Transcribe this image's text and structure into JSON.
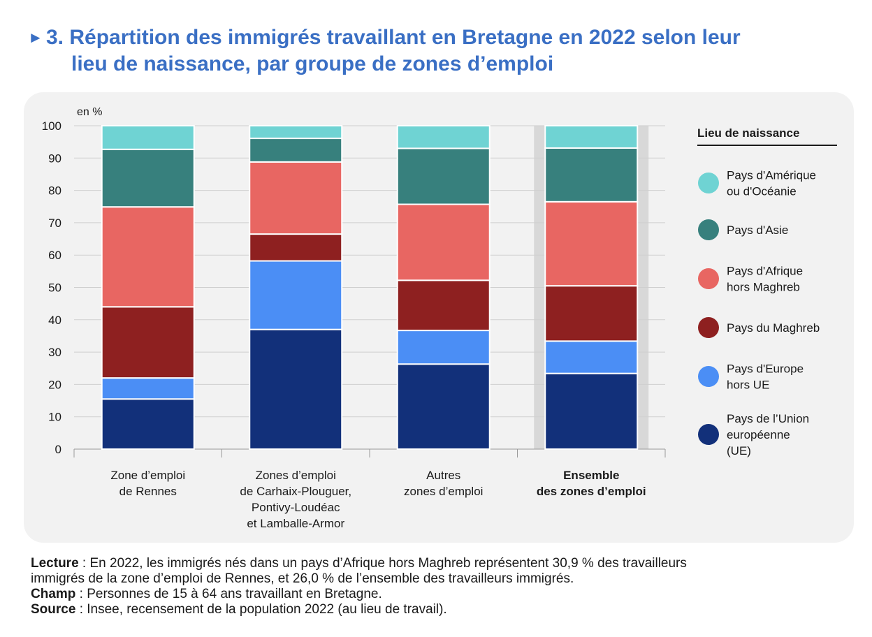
{
  "title": {
    "arrow": "►",
    "line1": "3. Répartition des immigrés travaillant en Bretagne en 2022 selon leur",
    "line2": "lieu de naissance, par groupe de zones d’emploi"
  },
  "chart_data": {
    "type": "bar",
    "stacked": true,
    "unit_label": "en %",
    "ylim": [
      0,
      100
    ],
    "yticks": [
      0,
      10,
      20,
      30,
      40,
      50,
      60,
      70,
      80,
      90,
      100
    ],
    "categories": [
      [
        "Zone d’emploi",
        "de Rennes"
      ],
      [
        "Zones d’emploi",
        "de Carhaix-Plouguer,",
        "Pontivy-Loudéac",
        "et Lamballe-Armor"
      ],
      [
        "Autres",
        "zones d’emploi"
      ],
      [
        "Ensemble",
        "des zones d’emploi"
      ]
    ],
    "highlight_category_index": 3,
    "series": [
      {
        "name": "Pays de l’Union européenne (UE)",
        "color": "#12307a",
        "values": [
          15.5,
          37.0,
          26.3,
          23.4
        ]
      },
      {
        "name": "Pays d'Europe hors UE",
        "color": "#4b8ef5",
        "values": [
          6.5,
          21.2,
          10.4,
          10.0
        ]
      },
      {
        "name": "Pays du Maghreb",
        "color": "#8e2020",
        "values": [
          22.0,
          8.3,
          15.5,
          17.1
        ]
      },
      {
        "name": "Pays d'Afrique hors Maghreb",
        "color": "#e86662",
        "values": [
          30.9,
          22.3,
          23.5,
          26.0
        ]
      },
      {
        "name": "Pays d'Asie",
        "color": "#37807d",
        "values": [
          17.8,
          7.3,
          17.3,
          16.6
        ]
      },
      {
        "name": "Pays d'Amérique ou d'Océanie",
        "color": "#6fd3d3",
        "values": [
          7.3,
          3.9,
          7.0,
          6.9
        ]
      }
    ],
    "legend": {
      "title": "Lieu de naissance",
      "position": "right",
      "entries": [
        {
          "lines": [
            "Pays d'Amérique",
            "ou d'Océanie"
          ],
          "color": "#6fd3d3"
        },
        {
          "lines": [
            "Pays d'Asie"
          ],
          "color": "#37807d"
        },
        {
          "lines": [
            "Pays d'Afrique",
            "hors Maghreb"
          ],
          "color": "#e86662"
        },
        {
          "lines": [
            "Pays du Maghreb"
          ],
          "color": "#8e2020"
        },
        {
          "lines": [
            "Pays d'Europe",
            "hors UE"
          ],
          "color": "#4b8ef5"
        },
        {
          "lines": [
            "Pays de l’Union",
            "européenne",
            "(UE)"
          ],
          "color": "#12307a"
        }
      ]
    },
    "grid": true
  },
  "notes": {
    "lecture_label": "Lecture",
    "lecture_text_1": " : En 2022, les immigrés nés dans un pays d’Afrique hors Maghreb représentent 30,9 % des travailleurs",
    "lecture_text_2": "immigrés de la zone d’emploi de Rennes, et 26,0 % de l’ensemble des travailleurs immigrés.",
    "champ_label": "Champ",
    "champ_text": " : Personnes de 15 à 64 ans travaillant en Bretagne.",
    "source_label": "Source",
    "source_text": " : Insee, recensement de la population 2022 (au lieu de travail)."
  }
}
